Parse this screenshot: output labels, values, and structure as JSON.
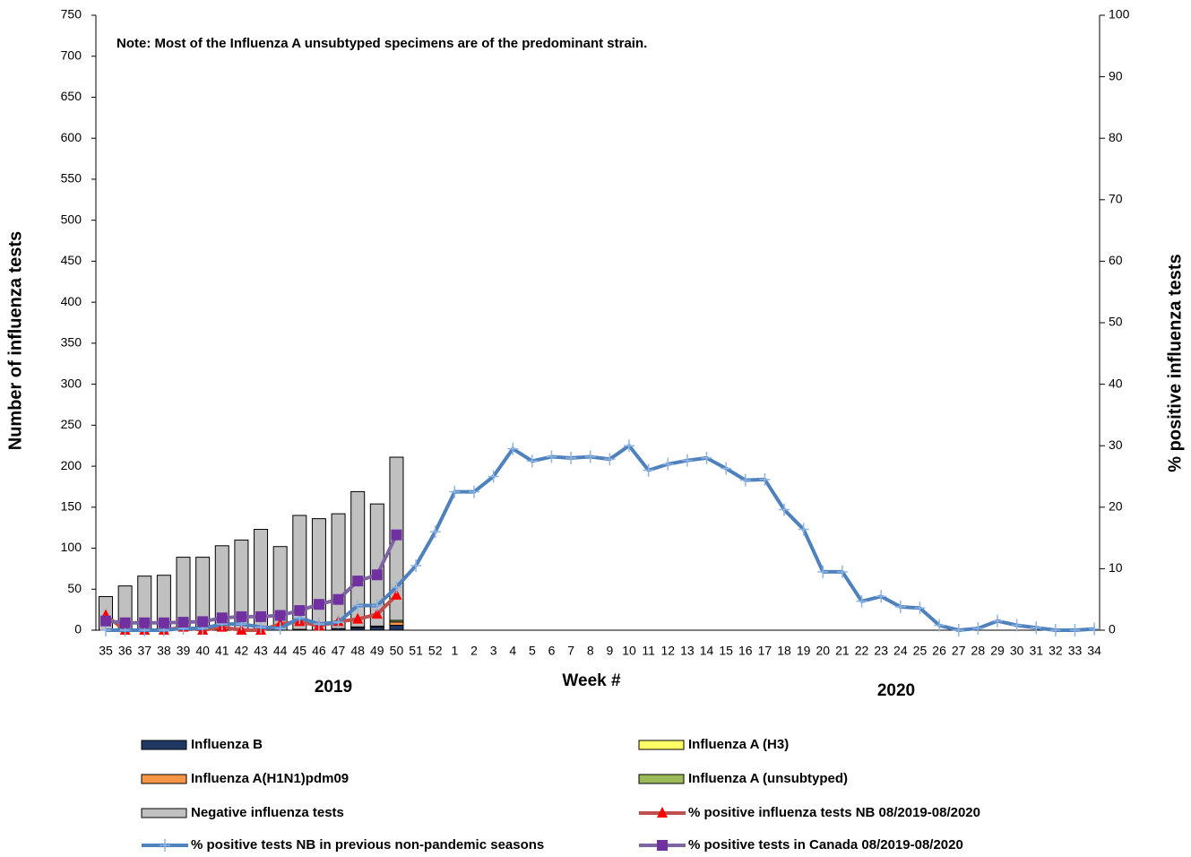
{
  "chart_data": {
    "type": "bar_line",
    "note": "Note: Most of the  Influenza A unsubtyped specimens are of the predominant strain.",
    "ylabel": "Number of influenza tests",
    "y2label": "% positive influenza tests",
    "xlabel": "Week #",
    "x_group_labels": [
      "2019",
      "2020"
    ],
    "categories": [
      "35",
      "36",
      "37",
      "38",
      "39",
      "40",
      "41",
      "42",
      "43",
      "44",
      "45",
      "46",
      "47",
      "48",
      "49",
      "50",
      "51",
      "52",
      "1",
      "2",
      "3",
      "4",
      "5",
      "6",
      "7",
      "8",
      "9",
      "10",
      "11",
      "12",
      "13",
      "14",
      "15",
      "16",
      "17",
      "18",
      "19",
      "20",
      "21",
      "22",
      "23",
      "24",
      "25",
      "26",
      "27",
      "28",
      "29",
      "30",
      "31",
      "32",
      "33",
      "34"
    ],
    "ylim": [
      0,
      750
    ],
    "yticks": [
      0,
      50,
      100,
      150,
      200,
      250,
      300,
      350,
      400,
      450,
      500,
      550,
      600,
      650,
      700,
      750
    ],
    "y2lim": [
      0,
      100
    ],
    "y2ticks": [
      0,
      10,
      20,
      30,
      40,
      50,
      60,
      70,
      80,
      90,
      100
    ],
    "series": [
      {
        "name": "Influenza B",
        "kind": "bar",
        "color": "#1f3864",
        "values": [
          0,
          0,
          0,
          0,
          0,
          0,
          0,
          0,
          0,
          0,
          1,
          0,
          2,
          3,
          4,
          6,
          null,
          null,
          null,
          null,
          null,
          null,
          null,
          null,
          null,
          null,
          null,
          null,
          null,
          null,
          null,
          null,
          null,
          null,
          null,
          null,
          null,
          null,
          null,
          null,
          null,
          null,
          null,
          null,
          null,
          null,
          null,
          null,
          null,
          null,
          null,
          null
        ]
      },
      {
        "name": "Influenza A(H1N1)pdm09",
        "kind": "bar",
        "color": "#f79646",
        "values": [
          0,
          0,
          0,
          0,
          0,
          0,
          0,
          0,
          0,
          0,
          0,
          0,
          0,
          0,
          1,
          4,
          null,
          null,
          null,
          null,
          null,
          null,
          null,
          null,
          null,
          null,
          null,
          null,
          null,
          null,
          null,
          null,
          null,
          null,
          null,
          null,
          null,
          null,
          null,
          null,
          null,
          null,
          null,
          null,
          null,
          null,
          null,
          null,
          null,
          null,
          null,
          null
        ]
      },
      {
        "name": "Influenza A (H3)",
        "kind": "bar",
        "color": "#ffff66",
        "values": [
          0,
          0,
          0,
          0,
          0,
          0,
          0,
          0,
          0,
          0,
          0,
          0,
          0,
          0,
          0,
          0,
          null,
          null,
          null,
          null,
          null,
          null,
          null,
          null,
          null,
          null,
          null,
          null,
          null,
          null,
          null,
          null,
          null,
          null,
          null,
          null,
          null,
          null,
          null,
          null,
          null,
          null,
          null,
          null,
          null,
          null,
          null,
          null,
          null,
          null,
          null,
          null
        ]
      },
      {
        "name": "Influenza A (unsubtyped)",
        "kind": "bar",
        "color": "#9bbb59",
        "values": [
          0,
          0,
          0,
          0,
          0,
          0,
          0,
          0,
          0,
          0,
          0,
          0,
          0,
          1,
          0,
          2,
          null,
          null,
          null,
          null,
          null,
          null,
          null,
          null,
          null,
          null,
          null,
          null,
          null,
          null,
          null,
          null,
          null,
          null,
          null,
          null,
          null,
          null,
          null,
          null,
          null,
          null,
          null,
          null,
          null,
          null,
          null,
          null,
          null,
          null,
          null,
          null
        ]
      },
      {
        "name": "Negative influenza tests",
        "kind": "bar",
        "color": "#c0c0c0",
        "values": [
          41,
          54,
          66,
          67,
          89,
          89,
          103,
          110,
          123,
          102,
          139,
          136,
          140,
          165,
          149,
          199,
          null,
          null,
          null,
          null,
          null,
          null,
          null,
          null,
          null,
          null,
          null,
          null,
          null,
          null,
          null,
          null,
          null,
          null,
          null,
          null,
          null,
          null,
          null,
          null,
          null,
          null,
          null,
          null,
          null,
          null,
          null,
          null,
          null,
          null,
          null,
          null
        ]
      },
      {
        "name": "% positive influenza tests NB 08/2019-08/2020",
        "kind": "line",
        "axis": "y2",
        "color": "#c0504d",
        "marker": "triangle",
        "marker_color": "#ff0000",
        "values": [
          2.4,
          0,
          0,
          0,
          0.5,
          0,
          0.5,
          0,
          0,
          1,
          1.4,
          0.7,
          1.4,
          1.8,
          2.6,
          5.7,
          null,
          null,
          null,
          null,
          null,
          null,
          null,
          null,
          null,
          null,
          null,
          null,
          null,
          null,
          null,
          null,
          null,
          null,
          null,
          null,
          null,
          null,
          null,
          null,
          null,
          null,
          null,
          null,
          null,
          null,
          null,
          null,
          null,
          null,
          null,
          null
        ]
      },
      {
        "name": "% positive tests NB in previous non-pandemic seasons",
        "kind": "line",
        "axis": "y2",
        "color": "#4f81bd",
        "marker": "plus",
        "marker_color": "#8eb4e3",
        "values": [
          0,
          0,
          0,
          0,
          0.3,
          0.3,
          1,
          1,
          0.5,
          0.3,
          2,
          1,
          1.3,
          4,
          4,
          7,
          10.5,
          16,
          22.5,
          22.5,
          25,
          29.5,
          27.5,
          28.2,
          28,
          28.2,
          27.8,
          30,
          26,
          27,
          27.6,
          28,
          26.3,
          24.4,
          24.5,
          19.6,
          16.4,
          9.5,
          9.5,
          4.7,
          5.5,
          3.8,
          3.6,
          0.8,
          0,
          0.3,
          1.5,
          0.8,
          0.4,
          0,
          0,
          0.2
        ]
      },
      {
        "name": "% positive tests  in Canada 08/2019-08/2020",
        "kind": "line",
        "axis": "y2",
        "color": "#8064a2",
        "marker": "square",
        "marker_color": "#7030a0",
        "values": [
          1.5,
          1.2,
          1.2,
          1.2,
          1.3,
          1.4,
          2,
          2.2,
          2.2,
          2.4,
          3.2,
          4.2,
          5,
          8,
          9,
          15.5,
          null,
          null,
          null,
          null,
          null,
          null,
          null,
          null,
          null,
          null,
          null,
          null,
          null,
          null,
          null,
          null,
          null,
          null,
          null,
          null,
          null,
          null,
          null,
          null,
          null,
          null,
          null,
          null,
          null,
          null,
          null,
          null,
          null,
          null,
          null,
          null
        ]
      }
    ]
  }
}
